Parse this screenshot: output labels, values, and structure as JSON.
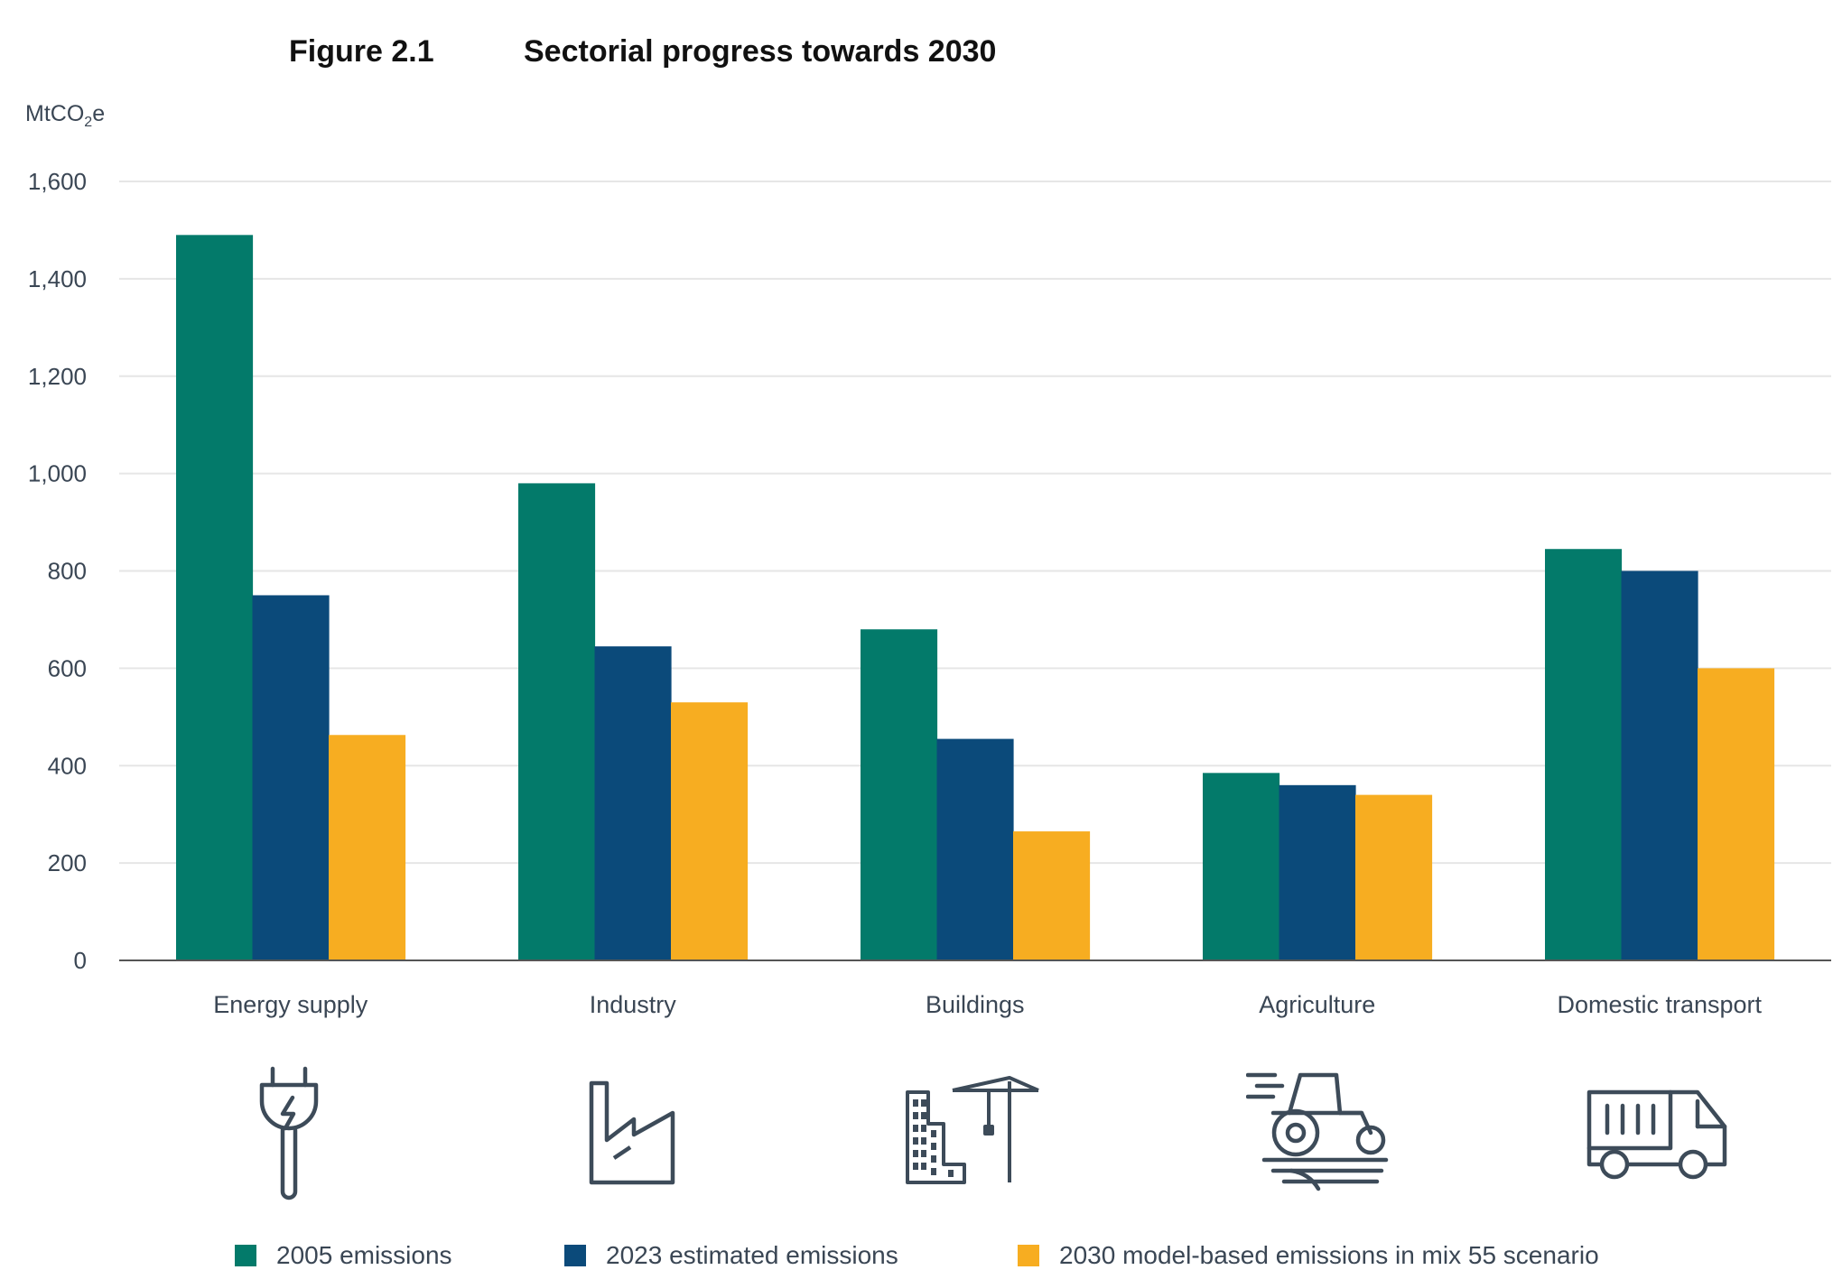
{
  "figure": {
    "label": "Figure 2.1",
    "title": "Sectorial progress towards 2030",
    "unit": "MtCO",
    "unit_sub": "2",
    "unit_suffix": "e"
  },
  "chart_data": {
    "type": "bar",
    "title": "Sectorial progress towards 2030",
    "xlabel": "",
    "ylabel": "MtCO2e",
    "ylim": [
      0,
      1600
    ],
    "yticks": [
      0,
      200,
      400,
      600,
      800,
      1000,
      1200,
      1400,
      1600
    ],
    "ytick_labels": [
      "0",
      "200",
      "400",
      "600",
      "800",
      "1,000",
      "1,200",
      "1,400",
      "1,600"
    ],
    "grid": true,
    "legend_position": "bottom",
    "categories": [
      "Energy supply",
      "Industry",
      "Buildings",
      "Agriculture",
      "Domestic transport"
    ],
    "series": [
      {
        "name": "2005 emissions",
        "color": "#037a6a",
        "values": [
          1490,
          980,
          680,
          385,
          845
        ]
      },
      {
        "name": "2023 estimated emissions",
        "color": "#0b4a7a",
        "values": [
          750,
          645,
          455,
          360,
          800
        ]
      },
      {
        "name": "2030 model-based emissions in mix 55 scenario",
        "color": "#f7ad21",
        "values": [
          463,
          530,
          265,
          340,
          600
        ]
      }
    ]
  },
  "icons": [
    {
      "name": "plug-icon"
    },
    {
      "name": "factory-icon"
    },
    {
      "name": "buildings-crane-icon"
    },
    {
      "name": "tractor-icon"
    },
    {
      "name": "truck-icon"
    }
  ],
  "colors": {
    "axis": "#555555",
    "grid": "#e6e6e6",
    "icon_stroke": "#3d4b59"
  }
}
